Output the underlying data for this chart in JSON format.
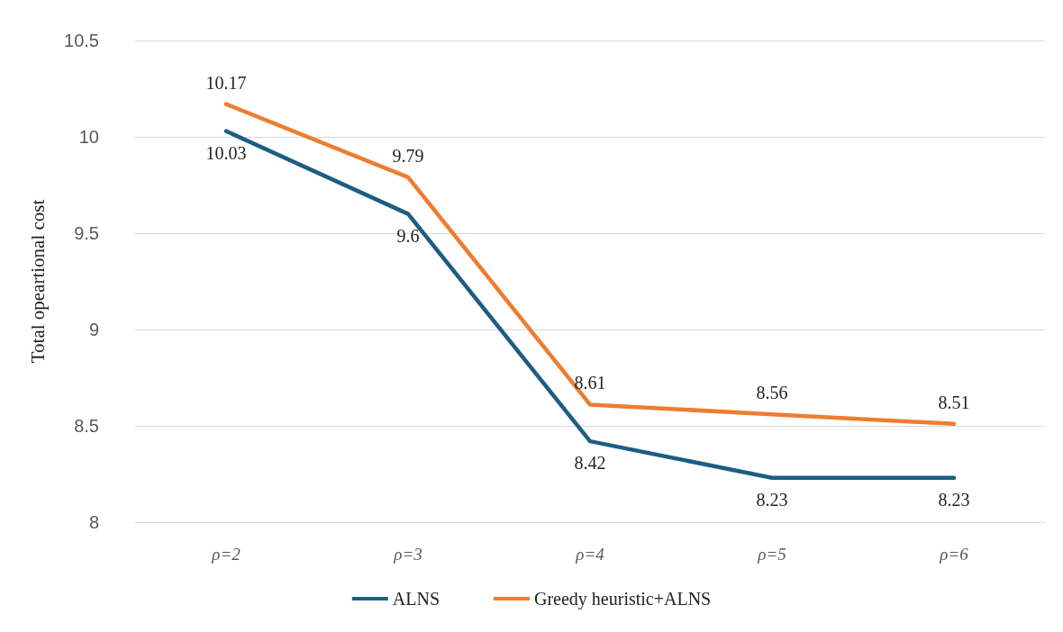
{
  "chart_data": {
    "type": "line",
    "ylabel": "Total opeartional cost",
    "categories": [
      "ρ=2",
      "ρ=3",
      "ρ=4",
      "ρ=5",
      "ρ=6"
    ],
    "series": [
      {
        "name": "ALNS",
        "color": "#1b5e82",
        "values": [
          10.03,
          9.6,
          8.42,
          8.23,
          8.23
        ]
      },
      {
        "name": "Greedy heuristic+ALNS",
        "color": "#ed7d31",
        "values": [
          10.17,
          9.79,
          8.61,
          8.56,
          8.51
        ]
      }
    ],
    "ylim": [
      8,
      10.5
    ],
    "yticks": [
      8,
      8.5,
      9,
      9.5,
      10,
      10.5
    ],
    "grid": "y",
    "legend": "bottom",
    "marker": "none",
    "line_style": "solid",
    "data_labels": true
  }
}
